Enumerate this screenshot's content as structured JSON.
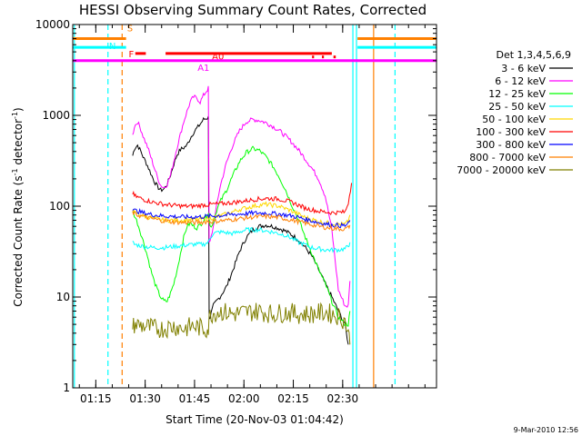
{
  "chart_data": {
    "type": "line",
    "title": "HESSI Observing Summary Count Rates, Corrected",
    "xlabel": "Start Time (20-Nov-03 01:04:42)",
    "ylabel": "Corrected Count Rate (s",
    "ylabel_exp1": "-1",
    "ylabel_mid": " detector",
    "ylabel_exp2": "-1",
    "ylabel_end": ")",
    "y_scale": "log",
    "ylim": [
      1,
      10000
    ],
    "xlim_min": [
      3.3,
      113.8
    ],
    "x_ticks": [
      {
        "min": 10.3,
        "label": "01:15"
      },
      {
        "min": 25.3,
        "label": "01:30"
      },
      {
        "min": 40.3,
        "label": "01:45"
      },
      {
        "min": 55.3,
        "label": "02:00"
      },
      {
        "min": 70.3,
        "label": "02:15"
      },
      {
        "min": 85.3,
        "label": "02:30"
      }
    ],
    "y_ticks": [
      {
        "value": 1,
        "label": "1"
      },
      {
        "value": 10,
        "label": "10"
      },
      {
        "value": 100,
        "label": "100"
      },
      {
        "value": 1000,
        "label": "1000"
      },
      {
        "value": 10000,
        "label": "10000"
      }
    ],
    "legend_title": "Det 1,3,4,5,6,9",
    "legend_position": "right",
    "series": [
      {
        "name": "3 - 6 keV",
        "color": "#000000",
        "x": [
          21.5,
          22,
          23,
          24,
          25,
          26,
          27,
          28,
          29,
          30,
          31,
          32,
          33,
          34,
          35,
          36,
          37,
          38,
          39,
          40,
          41,
          42,
          43,
          44.5,
          45,
          46,
          47,
          48,
          50,
          52,
          54,
          56,
          58,
          60,
          62,
          64,
          66,
          68,
          70,
          72,
          74,
          76,
          78,
          80,
          82,
          84,
          86,
          87
        ],
        "y": [
          360,
          430,
          470,
          400,
          330,
          280,
          230,
          190,
          165,
          150,
          155,
          175,
          220,
          290,
          370,
          420,
          440,
          470,
          560,
          650,
          720,
          800,
          900,
          950,
          6,
          8,
          9,
          10,
          13,
          20,
          32,
          45,
          55,
          60,
          62,
          60,
          57,
          53,
          48,
          42,
          35,
          28,
          20,
          14,
          10,
          7,
          5,
          3
        ]
      },
      {
        "name": "6 - 12 keV",
        "color": "#ff00ff",
        "x": [
          21.5,
          22,
          23,
          24,
          25,
          26,
          27,
          28,
          29,
          30,
          31,
          32,
          33,
          34,
          35,
          36,
          37,
          38,
          39,
          40,
          41,
          42,
          43,
          44.5,
          45,
          46,
          47,
          48,
          50,
          52,
          54,
          56,
          58,
          60,
          62,
          64,
          66,
          68,
          70,
          72,
          74,
          76,
          78,
          80,
          82,
          84,
          86,
          87,
          87.5
        ],
        "y": [
          600,
          750,
          850,
          700,
          550,
          450,
          350,
          270,
          210,
          170,
          160,
          175,
          220,
          310,
          450,
          620,
          850,
          1100,
          1400,
          1600,
          1550,
          1400,
          1650,
          2000,
          40,
          60,
          100,
          160,
          300,
          480,
          680,
          850,
          900,
          880,
          830,
          760,
          680,
          590,
          500,
          410,
          330,
          260,
          200,
          130,
          55,
          12,
          8,
          8,
          15
        ]
      },
      {
        "name": "12 - 25 keV",
        "color": "#00ff00",
        "x": [
          21.5,
          22,
          23,
          24,
          25,
          26,
          27,
          28,
          29,
          30,
          31,
          32,
          33,
          34,
          35,
          36,
          37,
          38,
          39,
          40,
          41,
          42,
          43,
          44.5,
          45,
          46,
          47,
          48,
          50,
          52,
          54,
          56,
          58,
          60,
          62,
          64,
          66,
          68,
          70,
          72,
          74,
          76,
          78,
          80,
          82,
          84,
          86,
          87,
          87.5
        ],
        "y": [
          90,
          80,
          65,
          50,
          38,
          28,
          20,
          15,
          12,
          10,
          9,
          9,
          11,
          14,
          20,
          30,
          45,
          60,
          65,
          60,
          58,
          62,
          70,
          85,
          60,
          65,
          90,
          110,
          150,
          220,
          310,
          390,
          430,
          410,
          350,
          280,
          210,
          150,
          100,
          70,
          45,
          30,
          20,
          14,
          9,
          6,
          5,
          5,
          7
        ]
      },
      {
        "name": "25 - 50 keV",
        "color": "#00ffff",
        "x": [
          21.5,
          22,
          25,
          28,
          31,
          34,
          37,
          40,
          43,
          44.5,
          45,
          46,
          48,
          52,
          56,
          60,
          64,
          68,
          72,
          76,
          80,
          84,
          86,
          87,
          87.5
        ],
        "y": [
          40,
          38,
          36,
          35,
          35,
          36,
          37,
          38,
          38,
          40,
          45,
          50,
          52,
          50,
          55,
          55,
          52,
          48,
          40,
          35,
          33,
          33,
          34,
          36,
          40
        ]
      },
      {
        "name": "50 - 100 keV",
        "color": "#ffd700",
        "x": [
          21.5,
          22,
          25,
          28,
          31,
          34,
          37,
          40,
          43,
          46,
          50,
          54,
          58,
          62,
          66,
          70,
          74,
          78,
          82,
          86,
          87,
          87.5
        ],
        "y": [
          88,
          85,
          78,
          73,
          70,
          70,
          70,
          71,
          72,
          75,
          82,
          92,
          100,
          105,
          100,
          88,
          75,
          68,
          64,
          63,
          68,
          80
        ]
      },
      {
        "name": "100 - 300 keV",
        "color": "#ff0000",
        "x": [
          21.5,
          22,
          25,
          28,
          31,
          34,
          37,
          40,
          43,
          46,
          50,
          54,
          58,
          62,
          66,
          70,
          74,
          78,
          82,
          86,
          87,
          88
        ],
        "y": [
          140,
          130,
          118,
          110,
          105,
          102,
          100,
          100,
          103,
          105,
          108,
          112,
          118,
          122,
          120,
          110,
          95,
          88,
          85,
          86,
          110,
          180
        ]
      },
      {
        "name": "300 - 800 keV",
        "color": "#0000ff",
        "x": [
          21.5,
          22,
          25,
          28,
          31,
          34,
          37,
          40,
          43,
          46,
          50,
          54,
          58,
          62,
          66,
          70,
          74,
          78,
          82,
          86,
          87,
          87.5
        ],
        "y": [
          95,
          90,
          84,
          80,
          78,
          77,
          76,
          76,
          77,
          78,
          80,
          82,
          84,
          84,
          82,
          78,
          72,
          66,
          62,
          61,
          64,
          70
        ]
      },
      {
        "name": "800 - 7000 keV",
        "color": "#ff8000",
        "x": [
          21.5,
          22,
          25,
          28,
          31,
          34,
          37,
          40,
          43,
          46,
          50,
          54,
          58,
          62,
          66,
          70,
          74,
          78,
          82,
          86,
          87,
          87.5
        ],
        "y": [
          85,
          82,
          76,
          72,
          69,
          67,
          66,
          66,
          67,
          68,
          70,
          73,
          76,
          77,
          75,
          70,
          65,
          60,
          57,
          56,
          58,
          62
        ]
      },
      {
        "name": "7000 - 20000 keV",
        "color": "#808000",
        "x": [
          21.5,
          22,
          25,
          28,
          31,
          34,
          37,
          40,
          43,
          44.5,
          45,
          48,
          52,
          56,
          60,
          64,
          68,
          72,
          76,
          80,
          84,
          86,
          87,
          87.5
        ],
        "y": [
          4.5,
          5,
          4.8,
          4.5,
          4.5,
          4.8,
          4.5,
          4.8,
          4.5,
          4.5,
          6.5,
          7,
          6.5,
          6.8,
          7,
          6.5,
          6.8,
          6.5,
          6.5,
          6.8,
          6.2,
          5.5,
          4,
          3
        ]
      }
    ],
    "attenuator_levels": [
      {
        "label": "S",
        "value": 7000,
        "color": "#ff8000",
        "segments": [
          [
            3.3,
            19.5
          ],
          [
            89.8,
            113.8
          ]
        ]
      },
      {
        "label": "N",
        "value": 5600,
        "color": "#00ffff",
        "segments": [
          [
            3.3,
            19.5
          ],
          [
            89.8,
            113.8
          ]
        ]
      },
      {
        "label": "F",
        "value": 4800,
        "color": "#ff0000",
        "segments": [
          [
            22.3,
            25.5
          ],
          [
            31.5,
            82.0
          ]
        ]
      },
      {
        "label": "A0",
        "value": 4400,
        "color": "#ff0000",
        "segments": [
          [
            76.0,
            76.6
          ],
          [
            79.0,
            79.6
          ],
          [
            82.5,
            83.2
          ]
        ]
      },
      {
        "label": "A1",
        "value": 4000,
        "color": "#ff00ff",
        "segments": [
          [
            3.3,
            113.8
          ]
        ]
      }
    ],
    "vertical_markers": [
      {
        "min": 3.8,
        "color": "#00ffff",
        "style": "solid"
      },
      {
        "min": 14.0,
        "color": "#00ffff",
        "style": "dash"
      },
      {
        "min": 18.3,
        "color": "#ff8000",
        "style": "dash"
      },
      {
        "min": 88.4,
        "color": "#00ffff",
        "style": "solid"
      },
      {
        "min": 89.5,
        "color": "#00ffff",
        "style": "solid"
      },
      {
        "min": 94.7,
        "color": "#ff8000",
        "style": "solid"
      },
      {
        "min": 101.2,
        "color": "#00ffff",
        "style": "dash"
      }
    ]
  },
  "footer": {
    "date_stamp": "9-Mar-2010 12:56"
  }
}
